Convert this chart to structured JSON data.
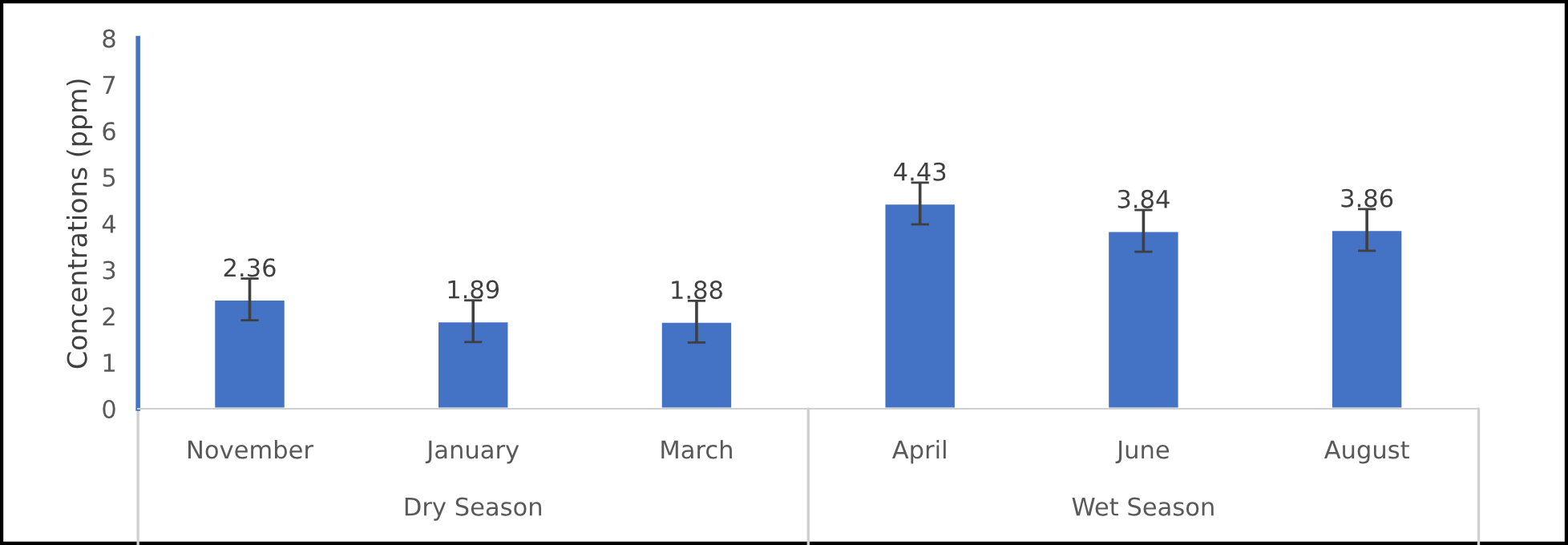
{
  "chart_data": {
    "type": "bar",
    "ylabel": "Concentrations (ppm)",
    "categories": [
      "November",
      "January",
      "March",
      "April",
      "June",
      "August"
    ],
    "values": [
      2.36,
      1.89,
      1.88,
      4.43,
      3.84,
      3.86
    ],
    "errors": [
      0.45,
      0.45,
      0.45,
      0.45,
      0.45,
      0.45
    ],
    "color": "#4472c4",
    "ylim": [
      0,
      8
    ],
    "yticks": [
      0,
      1,
      2,
      3,
      4,
      5,
      6,
      7,
      8
    ],
    "data_labels": true,
    "grid": false,
    "legend": false,
    "annotations": [
      "Dry Season",
      "Wet Season"
    ]
  }
}
